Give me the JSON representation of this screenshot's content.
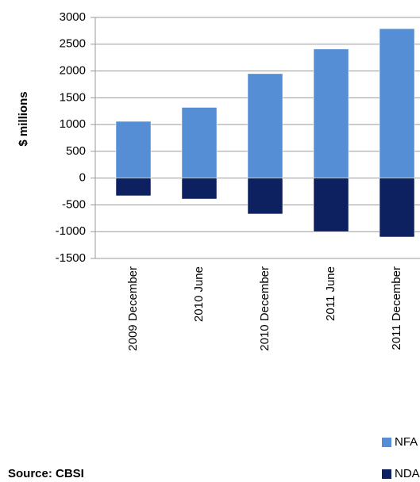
{
  "chart_data": {
    "type": "bar",
    "ylabel": "$ millions",
    "source": "Source: CBSI",
    "categories": [
      "2009 December",
      "2010 June",
      "2010 December",
      "2011 June",
      "2011 December"
    ],
    "series": [
      {
        "name": "NFA",
        "color": "#558ed5",
        "values": [
          1060,
          1320,
          1950,
          2410,
          2790
        ]
      },
      {
        "name": "NDA",
        "color": "#0d2060",
        "values": [
          -330,
          -390,
          -670,
          -1000,
          -1100
        ]
      }
    ],
    "ylim": [
      -1500,
      3000
    ],
    "yticks": [
      -1500,
      -1000,
      -500,
      0,
      500,
      1000,
      1500,
      2000,
      2500,
      3000
    ],
    "grid": true
  }
}
